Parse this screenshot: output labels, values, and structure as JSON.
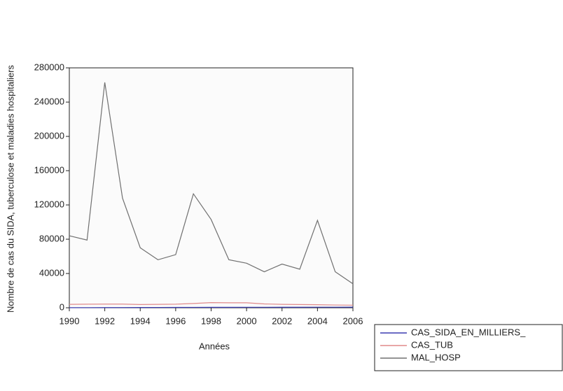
{
  "chart_data": {
    "type": "line",
    "x_label": "Années",
    "y_label": "Nombre de cas du SIDA, tuberculose et maladies hospitaliers",
    "x": [
      1990,
      1991,
      1992,
      1993,
      1994,
      1995,
      1996,
      1997,
      1998,
      1999,
      2000,
      2001,
      2002,
      2003,
      2004,
      2005,
      2006
    ],
    "series": [
      {
        "name": "CAS_SIDA_EN_MILLIERS_",
        "color": "#3b3bb0",
        "values": [
          100,
          150,
          200,
          250,
          300,
          350,
          400,
          450,
          500,
          500,
          550,
          550,
          600,
          600,
          650,
          650,
          700
        ]
      },
      {
        "name": "CAS_TUB",
        "color": "#e08a8a",
        "values": [
          4000,
          4200,
          4300,
          4300,
          3800,
          4000,
          4200,
          5000,
          6000,
          5800,
          5800,
          4500,
          4000,
          3800,
          3600,
          3200,
          3000
        ]
      },
      {
        "name": "MAL_HOSP",
        "color": "#707070",
        "values": [
          84000,
          79000,
          263000,
          128000,
          70000,
          56000,
          62000,
          133000,
          103000,
          56000,
          52000,
          42000,
          51000,
          45000,
          102000,
          42000,
          28000
        ]
      }
    ],
    "xlim": [
      1990,
      2006
    ],
    "xticks": [
      1990,
      1992,
      1994,
      1996,
      1998,
      2000,
      2002,
      2004,
      2006
    ],
    "ylim": [
      0,
      280000
    ],
    "yticks": [
      0,
      40000,
      80000,
      120000,
      160000,
      200000,
      240000,
      280000
    ],
    "legend": "bottom-right"
  }
}
